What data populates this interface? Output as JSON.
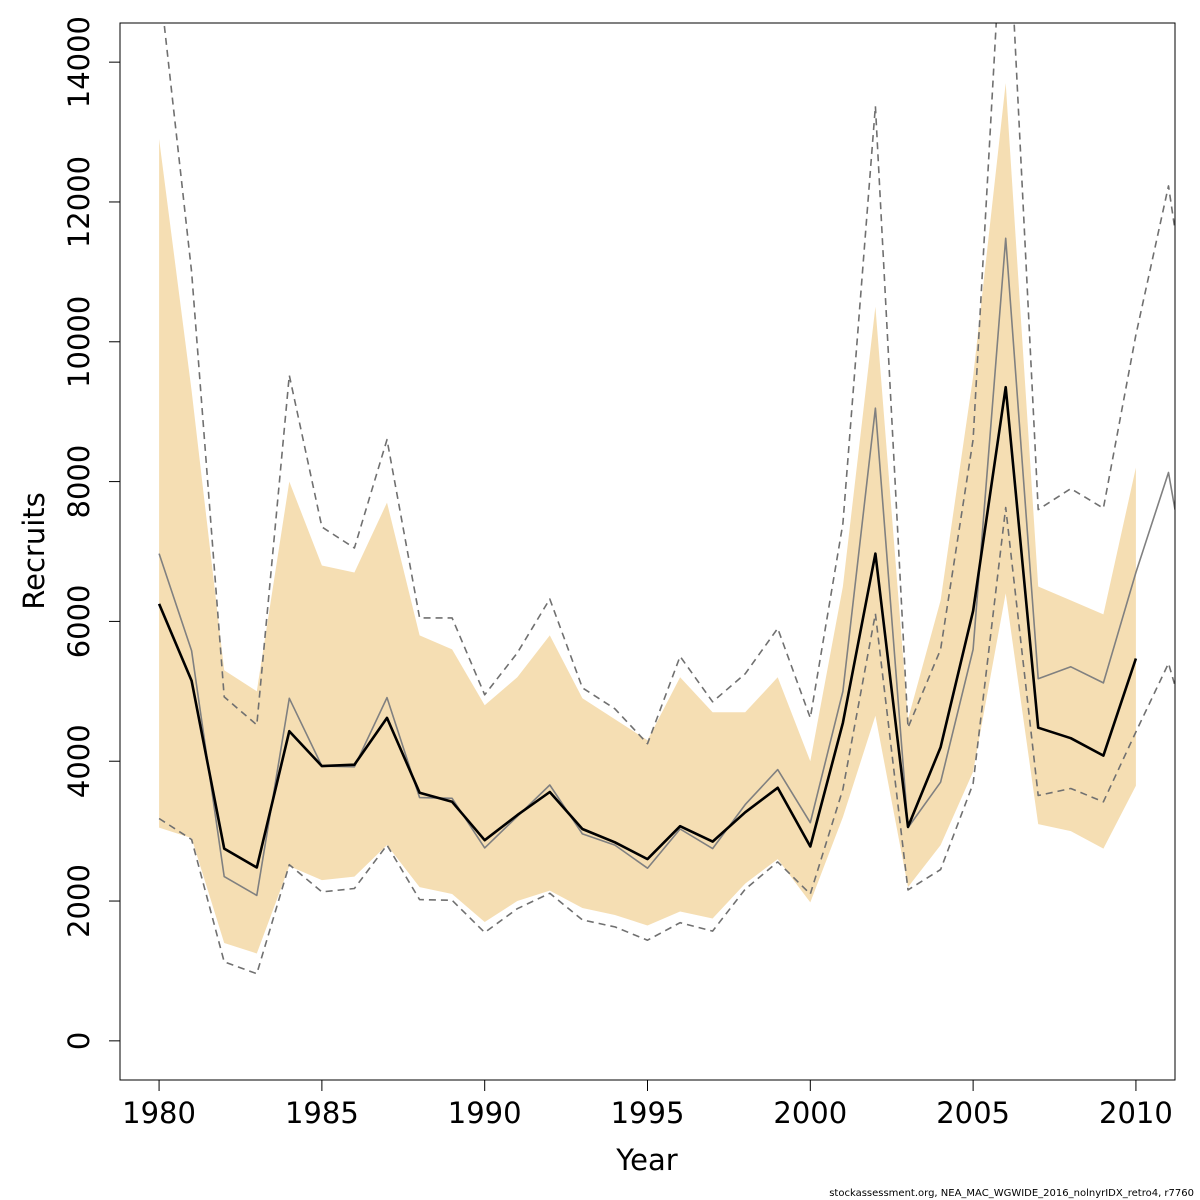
{
  "chart_data": {
    "type": "line",
    "xlabel": "Year",
    "ylabel": "Recruits",
    "xlim": [
      1978.8,
      2011.2
    ],
    "ylim": [
      -560,
      14560
    ],
    "x_ticks": [
      1980,
      1985,
      1990,
      1995,
      2000,
      2005,
      2010
    ],
    "y_ticks": [
      0,
      2000,
      4000,
      6000,
      8000,
      10000,
      12000,
      14000
    ],
    "grid": false,
    "colors": {
      "band": "#f5deb3",
      "estimate": "#000000",
      "retro": "#808080",
      "retro_ci": "#707070"
    },
    "confidence_band": {
      "x": [
        1980,
        1981,
        1982,
        1983,
        1984,
        1985,
        1986,
        1987,
        1988,
        1989,
        1990,
        1991,
        1992,
        1993,
        1994,
        1995,
        1996,
        1997,
        1998,
        1999,
        2000,
        2001,
        2002,
        2003,
        2004,
        2005,
        2006,
        2007,
        2008,
        2009,
        2010
      ],
      "upper": [
        12900,
        9300,
        5300,
        5000,
        8000,
        6800,
        6700,
        7700,
        5800,
        5600,
        4800,
        5200,
        5800,
        4900,
        4600,
        4300,
        5200,
        4700,
        4700,
        5200,
        4000,
        6500,
        10500,
        4600,
        6300,
        9500,
        13700,
        6500,
        6300,
        6100,
        8200
      ],
      "lower": [
        3050,
        2900,
        1400,
        1250,
        2500,
        2300,
        2350,
        2800,
        2200,
        2100,
        1700,
        2000,
        2150,
        1900,
        1800,
        1650,
        1850,
        1750,
        2250,
        2600,
        1980,
        3200,
        4650,
        2200,
        2800,
        3850,
        6400,
        3100,
        3000,
        2750,
        3650
      ]
    },
    "series": [
      {
        "style": "solid-thick",
        "x": [
          1980,
          1981,
          1982,
          1983,
          1984,
          1985,
          1986,
          1987,
          1988,
          1989,
          1990,
          1991,
          1992,
          1993,
          1994,
          1995,
          1996,
          1997,
          1998,
          1999,
          2000,
          2001,
          2002,
          2003,
          2004,
          2005,
          2006,
          2007,
          2008,
          2009,
          2010
        ],
        "values": [
          6250,
          5150,
          2750,
          2480,
          4430,
          3930,
          3950,
          4620,
          3550,
          3420,
          2870,
          3230,
          3560,
          3030,
          2840,
          2600,
          3070,
          2850,
          3270,
          3620,
          2780,
          4550,
          6970,
          3060,
          4200,
          6150,
          9350,
          4480,
          4330,
          4080,
          5470
        ]
      },
      {
        "style": "solid-thin",
        "x": [
          1980,
          1981,
          1982,
          1983,
          1984,
          1985,
          1986,
          1987,
          1988,
          1989,
          1990,
          1991,
          1992,
          1993,
          1994,
          1995,
          1996,
          1997,
          1998,
          1999,
          2000,
          2001,
          2002,
          2003,
          2004,
          2005,
          2006,
          2007,
          2008,
          2009,
          2010,
          2011,
          2011.2
        ],
        "values": [
          6970,
          5580,
          2350,
          2080,
          4900,
          3930,
          3920,
          4910,
          3480,
          3470,
          2760,
          3210,
          3660,
          2960,
          2800,
          2470,
          3030,
          2750,
          3380,
          3880,
          3120,
          5000,
          9050,
          3050,
          3700,
          5600,
          11480,
          5180,
          5350,
          5120,
          6700,
          8130,
          7600
        ]
      },
      {
        "style": "dashed",
        "x": [
          1980,
          1981,
          1982,
          1983,
          1984,
          1985,
          1986,
          1987,
          1988,
          1989,
          1990,
          1991,
          1992,
          1993,
          1994,
          1995,
          1996,
          1997,
          1998,
          1999,
          2000,
          2001,
          2002,
          2003,
          2004,
          2005,
          2006,
          2007,
          2008,
          2009,
          2010,
          2011,
          2011.2
        ],
        "values": [
          15200,
          11000,
          4920,
          4520,
          9520,
          7350,
          7050,
          8600,
          6050,
          6050,
          4950,
          5550,
          6320,
          5050,
          4750,
          4250,
          5500,
          4850,
          5250,
          5900,
          4620,
          7400,
          13370,
          4480,
          5600,
          8600,
          17000,
          7600,
          7900,
          7620,
          10100,
          12230,
          11600
        ]
      },
      {
        "style": "dashed",
        "x": [
          1980,
          1981,
          1982,
          1983,
          1984,
          1985,
          1986,
          1987,
          1988,
          1989,
          1990,
          1991,
          1992,
          1993,
          1994,
          1995,
          1996,
          1997,
          1998,
          1999,
          2000,
          2001,
          2002,
          2003,
          2004,
          2005,
          2006,
          2007,
          2008,
          2009,
          2010,
          2011,
          2011.2
        ],
        "values": [
          3180,
          2880,
          1130,
          960,
          2520,
          2130,
          2180,
          2800,
          2020,
          2010,
          1550,
          1890,
          2110,
          1730,
          1630,
          1440,
          1690,
          1570,
          2170,
          2560,
          2100,
          3600,
          6110,
          2160,
          2450,
          3680,
          7630,
          3510,
          3610,
          3420,
          4420,
          5400,
          5080
        ]
      }
    ],
    "footer": "stockassessment.org, NEA_MAC_WGWIDE_2016_nolnyrIDX_retro4, r7760"
  }
}
